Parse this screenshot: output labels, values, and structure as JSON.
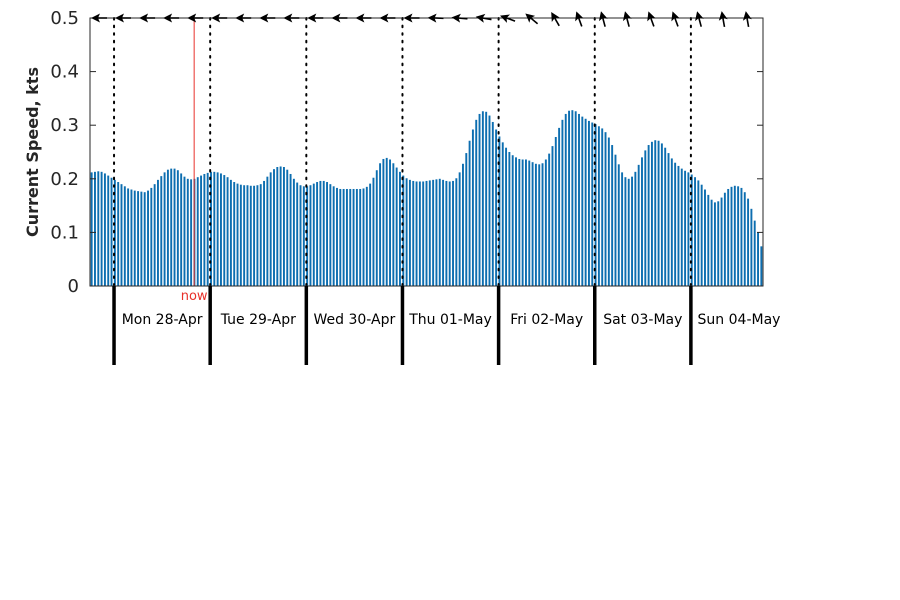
{
  "chart_data": {
    "type": "bar",
    "ylabel": "Current Speed, kts",
    "ylim": [
      0,
      0.5
    ],
    "y_ticks": [
      "0",
      "0.1",
      "0.2",
      "0.3",
      "0.4",
      "0.5"
    ],
    "x_unit": "hours",
    "x_range_hours": [
      0,
      168
    ],
    "day_boundaries_hours": [
      6,
      30,
      54,
      78,
      102,
      126,
      150
    ],
    "days": [
      {
        "label": "Mon 28-Apr"
      },
      {
        "label": "Tue 29-Apr"
      },
      {
        "label": "Wed 30-Apr"
      },
      {
        "label": "Thu 01-May"
      },
      {
        "label": "Fri 02-May"
      },
      {
        "label": "Sat 03-May"
      },
      {
        "label": "Sun 04-May"
      }
    ],
    "now": {
      "label": "now",
      "hour": 26
    },
    "bar_color": "#0d6eb0",
    "now_color": "#e8302a",
    "direction_arrows": "every 6 hours along top, rotating from west-pointing to north-east-pointing",
    "series": [
      {
        "values": [
          0.212,
          0.213,
          0.214,
          0.213,
          0.21,
          0.206,
          0.202,
          0.198,
          0.194,
          0.19,
          0.186,
          0.182,
          0.18,
          0.178,
          0.177,
          0.176,
          0.175,
          0.178,
          0.183,
          0.19,
          0.198,
          0.205,
          0.212,
          0.217,
          0.219,
          0.219,
          0.216,
          0.21,
          0.204,
          0.2,
          0.199,
          0.2,
          0.203,
          0.206,
          0.209,
          0.211,
          0.213,
          0.213,
          0.212,
          0.21,
          0.207,
          0.203,
          0.198,
          0.194,
          0.191,
          0.189,
          0.188,
          0.188,
          0.187,
          0.187,
          0.188,
          0.19,
          0.196,
          0.204,
          0.212,
          0.218,
          0.222,
          0.223,
          0.222,
          0.217,
          0.209,
          0.2,
          0.193,
          0.188,
          0.186,
          0.186,
          0.188,
          0.191,
          0.194,
          0.196,
          0.196,
          0.194,
          0.19,
          0.186,
          0.183,
          0.181,
          0.181,
          0.181,
          0.181,
          0.181,
          0.181,
          0.181,
          0.182,
          0.185,
          0.191,
          0.202,
          0.216,
          0.229,
          0.237,
          0.239,
          0.236,
          0.229,
          0.221,
          0.213,
          0.206,
          0.201,
          0.198,
          0.196,
          0.195,
          0.195,
          0.195,
          0.196,
          0.197,
          0.198,
          0.199,
          0.2,
          0.198,
          0.196,
          0.195,
          0.196,
          0.201,
          0.212,
          0.228,
          0.248,
          0.271,
          0.292,
          0.31,
          0.321,
          0.326,
          0.325,
          0.318,
          0.306,
          0.292,
          0.279,
          0.268,
          0.258,
          0.25,
          0.244,
          0.24,
          0.237,
          0.236,
          0.236,
          0.234,
          0.231,
          0.228,
          0.227,
          0.229,
          0.236,
          0.247,
          0.261,
          0.278,
          0.295,
          0.31,
          0.321,
          0.327,
          0.328,
          0.326,
          0.321,
          0.316,
          0.312,
          0.308,
          0.305,
          0.302,
          0.298,
          0.294,
          0.287,
          0.277,
          0.263,
          0.245,
          0.227,
          0.212,
          0.203,
          0.2,
          0.204,
          0.213,
          0.226,
          0.24,
          0.253,
          0.263,
          0.269,
          0.272,
          0.271,
          0.266,
          0.258,
          0.248,
          0.238,
          0.23,
          0.224,
          0.219,
          0.215,
          0.212,
          0.208,
          0.203,
          0.197,
          0.189,
          0.18,
          0.17,
          0.161,
          0.156,
          0.158,
          0.165,
          0.174,
          0.181,
          0.185,
          0.187,
          0.186,
          0.183,
          0.175,
          0.163,
          0.144,
          0.122,
          0.1,
          0.074
        ]
      }
    ],
    "arrow_angles_deg": [
      180,
      180,
      180,
      180,
      180,
      180,
      180,
      180,
      180,
      180,
      180,
      180,
      180,
      180,
      178,
      175,
      170,
      160,
      140,
      120,
      110,
      105,
      105,
      110,
      110,
      105,
      100,
      100,
      105,
      110
    ]
  }
}
